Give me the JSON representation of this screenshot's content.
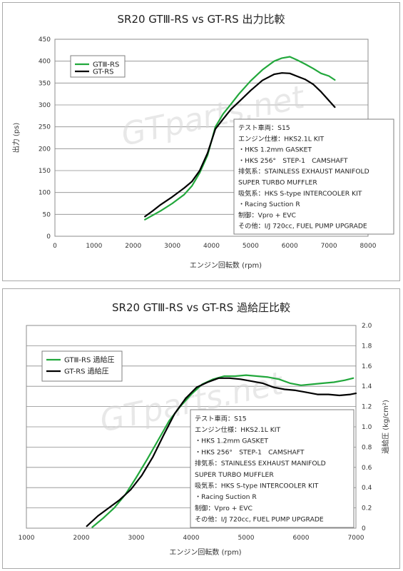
{
  "charts": [
    {
      "title": "SR20 GTⅢ-RS vs GT-RS 出力比較",
      "xlabel": "エンジン回転数 (rpm)",
      "ylabel": "出力 (ps)",
      "x_ticks": [
        "0",
        "1000",
        "2000",
        "3000",
        "4000",
        "5000",
        "6000",
        "7000",
        "8000"
      ],
      "y_ticks": [
        "0",
        "50",
        "100",
        "150",
        "200",
        "250",
        "300",
        "350",
        "400",
        "450"
      ],
      "legend": [
        "GTⅢ-RS",
        "GT-RS"
      ],
      "watermark": "GTparts.net",
      "spec_lines": [
        "テスト車両：S15",
        "エンジン仕様：HKS2.1L KIT",
        "・HKS 1.2mm GASKET",
        "・HKS 256°　STEP-1　CAMSHAFT",
        "排気系：STAINLESS EXHAUST MANIFOLD",
        "SUPER TURBO MUFFLER",
        "吸気系：HKS S-type INTERCOOLER KIT",
        "・Racing Suction R",
        "制御：Vpro + EVC",
        "その他：I/J 720cc, FUEL PUMP UPGRADE"
      ]
    },
    {
      "title": "SR20 GTⅢ-RS vs GT-RS 過給圧比較",
      "xlabel": "エンジン回転数 (rpm)",
      "ylabel": "過給圧 (kg/cm²)",
      "x_ticks": [
        "1000",
        "2000",
        "3000",
        "4000",
        "5000",
        "6000",
        "7000"
      ],
      "y_ticks": [
        "0",
        "0.2",
        "0.4",
        "0.6",
        "0.8",
        "1.0",
        "1.2",
        "1.4",
        "1.6",
        "1.8",
        "2.0"
      ],
      "legend": [
        "GTⅢ-RS 過給圧",
        "GT-RS 過給圧"
      ],
      "watermark": "GTparts.net",
      "spec_lines": [
        "テスト車両：S15",
        "エンジン仕様：HKS2.1L KIT",
        "・HKS 1.2mm GASKET",
        "・HKS 256°　STEP-1　CAMSHAFT",
        "排気系：STAINLESS EXHAUST MANIFOLD",
        "SUPER TURBO MUFFLER",
        "吸気系：HKS S-type INTERCOOLER KIT",
        "・Racing Suction R",
        "制御：Vpro + EVC",
        "その他：I/J 720cc, FUEL PUMP UPGRADE"
      ]
    }
  ],
  "chart_data": [
    {
      "type": "line",
      "title": "SR20 GTⅢ-RS vs GT-RS 出力比較",
      "xlabel": "エンジン回転数 (rpm)",
      "ylabel": "出力 (ps)",
      "xlim": [
        0,
        8000
      ],
      "ylim": [
        0,
        450
      ],
      "grid": true,
      "legend_position": "top-left",
      "series": [
        {
          "name": "GTⅢ-RS",
          "color": "#22a83c",
          "x": [
            2300,
            2500,
            2700,
            3000,
            3300,
            3500,
            3700,
            3900,
            4100,
            4300,
            4500,
            4700,
            5000,
            5300,
            5600,
            5800,
            6000,
            6200,
            6400,
            6600,
            6800,
            7000,
            7150
          ],
          "y": [
            38,
            48,
            58,
            75,
            95,
            115,
            145,
            185,
            250,
            280,
            302,
            325,
            355,
            380,
            400,
            407,
            410,
            402,
            393,
            383,
            372,
            366,
            357
          ]
        },
        {
          "name": "GT-RS",
          "color": "#000000",
          "x": [
            2300,
            2500,
            2700,
            3000,
            3300,
            3500,
            3700,
            3900,
            4100,
            4300,
            4500,
            4700,
            5000,
            5300,
            5600,
            5800,
            6000,
            6200,
            6400,
            6600,
            6800,
            7000,
            7150
          ],
          "y": [
            45,
            58,
            72,
            90,
            110,
            125,
            150,
            190,
            245,
            268,
            290,
            307,
            333,
            356,
            370,
            373,
            372,
            365,
            358,
            347,
            330,
            310,
            295
          ]
        }
      ]
    },
    {
      "type": "line",
      "title": "SR20 GTⅢ-RS vs GT-RS 過給圧比較",
      "xlabel": "エンジン回転数 (rpm)",
      "ylabel": "過給圧 (kg/cm²)",
      "xlim": [
        1000,
        7000
      ],
      "ylim": [
        0,
        2.0
      ],
      "grid": true,
      "legend_position": "top-left",
      "series": [
        {
          "name": "GTⅢ-RS 過給圧",
          "color": "#22a83c",
          "x": [
            2200,
            2400,
            2600,
            2800,
            3000,
            3200,
            3400,
            3600,
            3800,
            4000,
            4200,
            4400,
            4600,
            4800,
            5000,
            5200,
            5400,
            5600,
            5800,
            6000,
            6200,
            6400,
            6600,
            6800,
            6950
          ],
          "y": [
            0.01,
            0.1,
            0.2,
            0.33,
            0.5,
            0.68,
            0.87,
            1.06,
            1.2,
            1.32,
            1.42,
            1.47,
            1.5,
            1.5,
            1.51,
            1.5,
            1.49,
            1.47,
            1.43,
            1.41,
            1.42,
            1.43,
            1.44,
            1.46,
            1.48
          ]
        },
        {
          "name": "GT-RS 過給圧",
          "color": "#000000",
          "x": [
            2100,
            2300,
            2500,
            2700,
            2900,
            3100,
            3300,
            3500,
            3700,
            3900,
            4100,
            4300,
            4500,
            4700,
            4900,
            5100,
            5300,
            5500,
            5700,
            5900,
            6100,
            6300,
            6500,
            6700,
            6900,
            7000
          ],
          "y": [
            0.02,
            0.12,
            0.2,
            0.28,
            0.38,
            0.52,
            0.7,
            0.92,
            1.13,
            1.28,
            1.39,
            1.44,
            1.48,
            1.48,
            1.47,
            1.45,
            1.43,
            1.39,
            1.37,
            1.36,
            1.34,
            1.32,
            1.32,
            1.31,
            1.32,
            1.33
          ]
        }
      ]
    }
  ]
}
